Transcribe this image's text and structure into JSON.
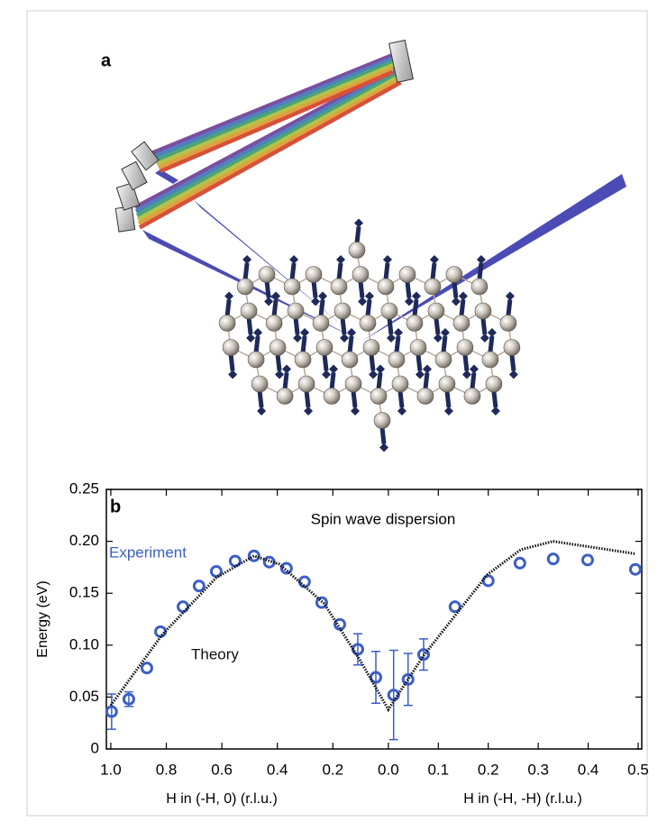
{
  "panel_a": {
    "label": "a"
  },
  "chart_data": {
    "type": "scatter",
    "panel_label": "b",
    "title": "Spin wave dispersion",
    "y_label": "Energy (eV)",
    "x_labels": [
      "H in (-H, 0) (r.l.u.)",
      "H in (-H, -H) (r.l.u.)"
    ],
    "xlim": [
      -0.016,
      1.913
    ],
    "ylim": [
      0,
      0.25
    ],
    "xticks": [
      {
        "value": 0,
        "label": "1.0"
      },
      {
        "value": 0.2,
        "label": "0.8"
      },
      {
        "value": 0.4,
        "label": "0.6"
      },
      {
        "value": 0.6,
        "label": "0.4"
      },
      {
        "value": 0.8,
        "label": "0.2"
      },
      {
        "value": 1,
        "label": "0.0"
      },
      {
        "value": 1.18,
        "label": "0.1"
      },
      {
        "value": 1.36,
        "label": "0.2"
      },
      {
        "value": 1.54,
        "label": "0.3"
      },
      {
        "value": 1.72,
        "label": "0.4"
      },
      {
        "value": 1.9,
        "label": "0.5"
      }
    ],
    "yticks": [
      0,
      0.05,
      {
        "value": 0.1,
        "label": "0.10"
      },
      0.15,
      {
        "value": 0.2,
        "label": "0.20"
      },
      0.25
    ],
    "series": [
      {
        "name": "Experiment",
        "color": "#3c5fc4",
        "mode": "markers",
        "x": [
          0.003,
          0.065,
          0.13,
          0.179,
          0.26,
          0.318,
          0.38,
          0.448,
          0.516,
          0.571,
          0.633,
          0.698,
          0.76,
          0.825,
          0.89,
          0.955,
          1.019,
          1.071,
          1.127,
          1.24,
          1.36,
          1.474,
          1.594,
          1.718,
          1.89
        ],
        "values": [
          0.036,
          0.048,
          0.078,
          0.113,
          0.137,
          0.157,
          0.171,
          0.181,
          0.186,
          0.18,
          0.174,
          0.161,
          0.141,
          0.12,
          0.096,
          0.069,
          0.052,
          0.067,
          0.091,
          0.137,
          0.162,
          0.179,
          0.183,
          0.182,
          0.173
        ],
        "errors": [
          0.017,
          0.007,
          null,
          null,
          null,
          null,
          null,
          null,
          null,
          null,
          null,
          null,
          null,
          null,
          0.015,
          0.025,
          0.043,
          0.025,
          0.015,
          null,
          null,
          null,
          null,
          null,
          null
        ]
      },
      {
        "name": "Theory",
        "color": "#111111",
        "mode": "dotted-line",
        "x": [
          0,
          0.185,
          0.38,
          0.516,
          0.607,
          0.769,
          0.899,
          1.0,
          1.127,
          1.357,
          1.477,
          1.594,
          1.89
        ],
        "values": [
          0.042,
          0.11,
          0.165,
          0.186,
          0.178,
          0.14,
          0.085,
          0.038,
          0.09,
          0.168,
          0.192,
          0.2,
          0.188
        ]
      }
    ]
  }
}
